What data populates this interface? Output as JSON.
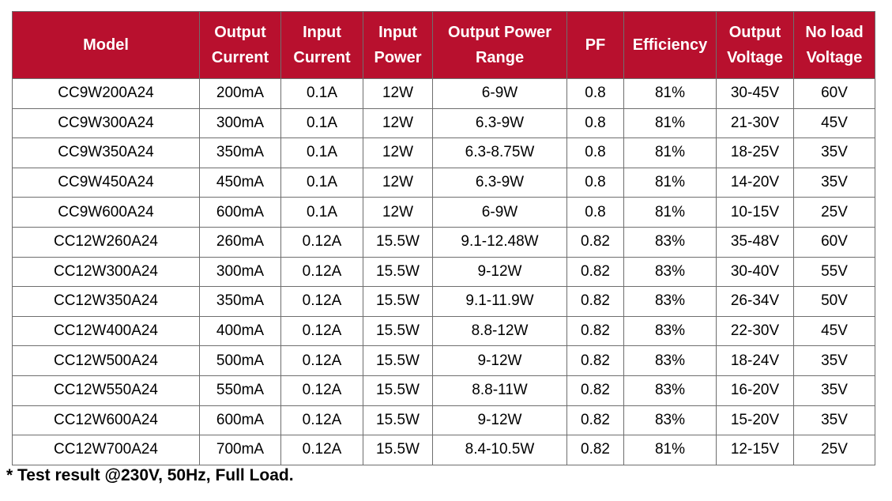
{
  "table": {
    "headers": [
      {
        "lines": [
          "Model"
        ]
      },
      {
        "lines": [
          "Output",
          "Current"
        ]
      },
      {
        "lines": [
          "Input",
          "Current"
        ]
      },
      {
        "lines": [
          "Input",
          "Power"
        ]
      },
      {
        "lines": [
          "Output Power",
          "Range"
        ]
      },
      {
        "lines": [
          "PF"
        ]
      },
      {
        "lines": [
          "Efficiency"
        ]
      },
      {
        "lines": [
          "Output",
          "Voltage"
        ]
      },
      {
        "lines": [
          "No load",
          "Voltage"
        ]
      }
    ],
    "rows": [
      [
        "CC9W200A24",
        "200mA",
        "0.1A",
        "12W",
        "6-9W",
        "0.8",
        "81%",
        "30-45V",
        "60V"
      ],
      [
        "CC9W300A24",
        "300mA",
        "0.1A",
        "12W",
        "6.3-9W",
        "0.8",
        "81%",
        "21-30V",
        "45V"
      ],
      [
        "CC9W350A24",
        "350mA",
        "0.1A",
        "12W",
        "6.3-8.75W",
        "0.8",
        "81%",
        "18-25V",
        "35V"
      ],
      [
        "CC9W450A24",
        "450mA",
        "0.1A",
        "12W",
        "6.3-9W",
        "0.8",
        "81%",
        "14-20V",
        "35V"
      ],
      [
        "CC9W600A24",
        "600mA",
        "0.1A",
        "12W",
        "6-9W",
        "0.8",
        "81%",
        "10-15V",
        "25V"
      ],
      [
        "CC12W260A24",
        "260mA",
        "0.12A",
        "15.5W",
        "9.1-12.48W",
        "0.82",
        "83%",
        "35-48V",
        "60V"
      ],
      [
        "CC12W300A24",
        "300mA",
        "0.12A",
        "15.5W",
        "9-12W",
        "0.82",
        "83%",
        "30-40V",
        "55V"
      ],
      [
        "CC12W350A24",
        "350mA",
        "0.12A",
        "15.5W",
        "9.1-11.9W",
        "0.82",
        "83%",
        "26-34V",
        "50V"
      ],
      [
        "CC12W400A24",
        "400mA",
        "0.12A",
        "15.5W",
        "8.8-12W",
        "0.82",
        "83%",
        "22-30V",
        "45V"
      ],
      [
        "CC12W500A24",
        "500mA",
        "0.12A",
        "15.5W",
        "9-12W",
        "0.82",
        "83%",
        "18-24V",
        "35V"
      ],
      [
        "CC12W550A24",
        "550mA",
        "0.12A",
        "15.5W",
        "8.8-11W",
        "0.82",
        "83%",
        "16-20V",
        "35V"
      ],
      [
        "CC12W600A24",
        "600mA",
        "0.12A",
        "15.5W",
        "9-12W",
        "0.82",
        "83%",
        "15-20V",
        "35V"
      ],
      [
        "CC12W700A24",
        "700mA",
        "0.12A",
        "15.5W",
        "8.4-10.5W",
        "0.82",
        "81%",
        "12-15V",
        "25V"
      ]
    ]
  },
  "footnote": "* Test result @230V, 50Hz, Full Load.",
  "colors": {
    "header_background": "#b8102e",
    "header_text": "#ffffff",
    "border": "#6e6e6e"
  }
}
